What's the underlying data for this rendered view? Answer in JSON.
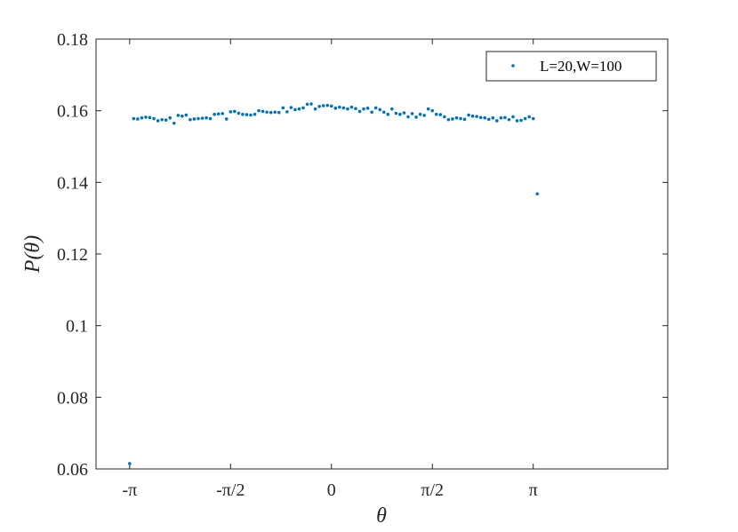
{
  "chart_data": {
    "type": "scatter",
    "title": "",
    "xlabel": "θ",
    "ylabel": "P(θ)",
    "xlim": [
      -3.6652,
      5.236
    ],
    "ylim": [
      0.06,
      0.18
    ],
    "x_ticks": [
      {
        "value": -3.1416,
        "label": "-π"
      },
      {
        "value": -1.5708,
        "label": "-π/2"
      },
      {
        "value": 0,
        "label": "0"
      },
      {
        "value": 1.5708,
        "label": "π/2"
      },
      {
        "value": 3.1416,
        "label": "π"
      }
    ],
    "y_ticks": [
      {
        "value": 0.06,
        "label": "0.06"
      },
      {
        "value": 0.08,
        "label": "0.08"
      },
      {
        "value": 0.1,
        "label": "0.1"
      },
      {
        "value": 0.12,
        "label": "0.12"
      },
      {
        "value": 0.14,
        "label": "0.14"
      },
      {
        "value": 0.16,
        "label": "0.16"
      },
      {
        "value": 0.18,
        "label": "0.18"
      }
    ],
    "legend_position": "top-right",
    "grid": false,
    "color": "#0072BD",
    "series": [
      {
        "name": "L=20,W=100",
        "x": [
          -3.1416,
          -3.0788,
          -3.0159,
          -2.9531,
          -2.8903,
          -2.8274,
          -2.7646,
          -2.7018,
          -2.6389,
          -2.5761,
          -2.5133,
          -2.4504,
          -2.3876,
          -2.3248,
          -2.2619,
          -2.1991,
          -2.1363,
          -2.0735,
          -2.0106,
          -1.9478,
          -1.885,
          -1.8221,
          -1.7593,
          -1.6965,
          -1.6336,
          -1.5708,
          -1.508,
          -1.4451,
          -1.3823,
          -1.3195,
          -1.2566,
          -1.1938,
          -1.131,
          -1.0681,
          -1.0053,
          -0.9425,
          -0.8796,
          -0.8168,
          -0.754,
          -0.6912,
          -0.6283,
          -0.5655,
          -0.5027,
          -0.4398,
          -0.377,
          -0.3142,
          -0.2513,
          -0.1885,
          -0.1257,
          -0.0628,
          0.0,
          0.0628,
          0.1257,
          0.1885,
          0.2513,
          0.3142,
          0.377,
          0.4398,
          0.5027,
          0.5655,
          0.6283,
          0.6912,
          0.754,
          0.8168,
          0.8796,
          0.9425,
          1.0053,
          1.0681,
          1.131,
          1.1938,
          1.2566,
          1.3195,
          1.3823,
          1.4451,
          1.508,
          1.5708,
          1.6336,
          1.6965,
          1.7593,
          1.8221,
          1.885,
          1.9478,
          2.0106,
          2.0735,
          2.1363,
          2.1991,
          2.2619,
          2.3248,
          2.3876,
          2.4504,
          2.5133,
          2.5761,
          2.6389,
          2.7018,
          2.7646,
          2.8274,
          2.8903,
          2.9531,
          3.0159,
          3.0788,
          3.1416
        ],
        "y": [
          0.0615,
          0.1578,
          0.1577,
          0.158,
          0.1582,
          0.1581,
          0.1578,
          0.1572,
          0.1575,
          0.1574,
          0.158,
          0.1565,
          0.1587,
          0.1585,
          0.1588,
          0.1575,
          0.1577,
          0.1578,
          0.1579,
          0.158,
          0.1578,
          0.159,
          0.1591,
          0.1592,
          0.1577,
          0.1597,
          0.1598,
          0.1593,
          0.159,
          0.1589,
          0.1588,
          0.159,
          0.16,
          0.1598,
          0.1596,
          0.1595,
          0.1596,
          0.1595,
          0.1608,
          0.1597,
          0.1609,
          0.1603,
          0.1605,
          0.1608,
          0.1618,
          0.1619,
          0.1605,
          0.1612,
          0.1614,
          0.1615,
          0.1613,
          0.1607,
          0.161,
          0.1608,
          0.1605,
          0.161,
          0.1606,
          0.1598,
          0.1605,
          0.1607,
          0.1596,
          0.1608,
          0.1603,
          0.1596,
          0.159,
          0.1605,
          0.1593,
          0.159,
          0.1594,
          0.1583,
          0.1592,
          0.1582,
          0.159,
          0.1587,
          0.1605,
          0.16,
          0.159,
          0.1589,
          0.1583,
          0.1575,
          0.1577,
          0.158,
          0.1578,
          0.1576,
          0.1588,
          0.1585,
          0.1584,
          0.1581,
          0.158,
          0.1576,
          0.158,
          0.1572,
          0.158,
          0.1581,
          0.1575,
          0.1583,
          0.1572,
          0.1573,
          0.1578,
          0.1583,
          0.1578
        ]
      },
      {
        "x": [
          3.2044
        ],
        "y": [
          0.1368
        ]
      }
    ]
  }
}
